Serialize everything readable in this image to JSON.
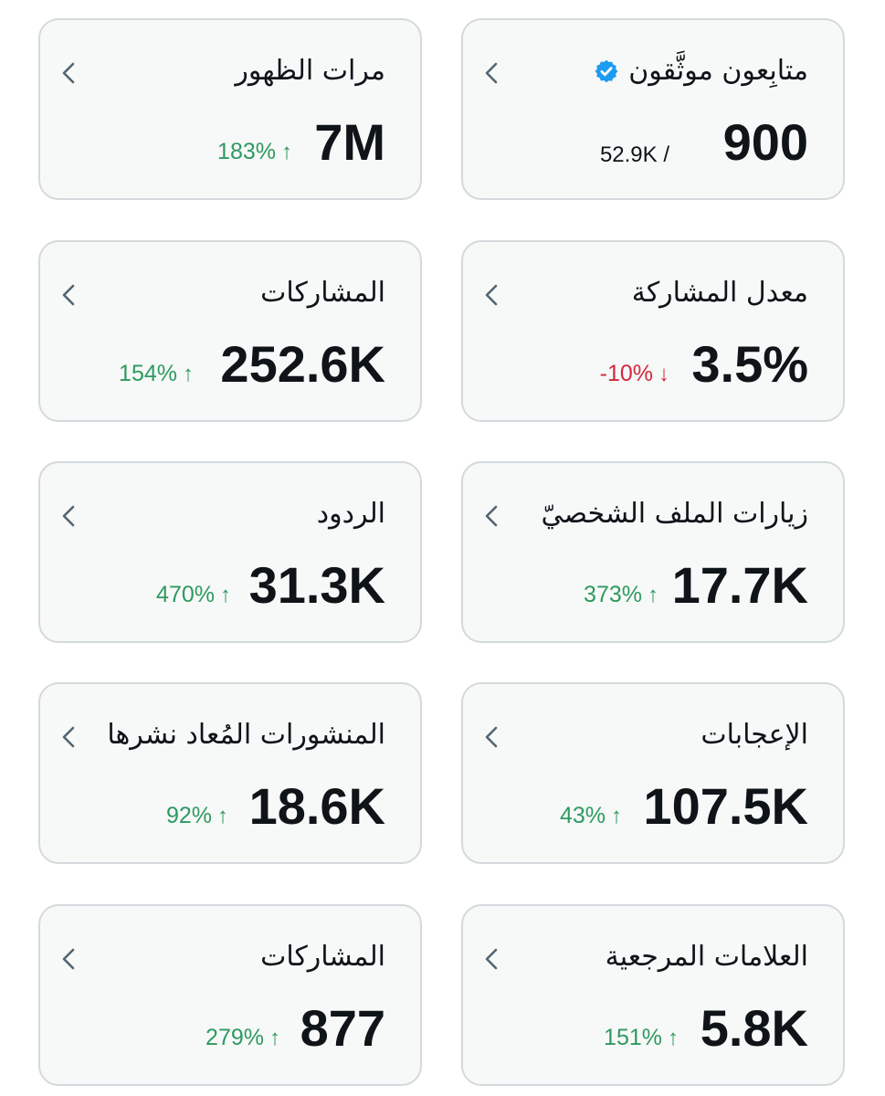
{
  "colors": {
    "card_bg": "#f7f8f8",
    "card_border": "#d4d9dd",
    "text_primary": "#0f1419",
    "positive": "#2e9a5f",
    "negative": "#d2293b",
    "verified_badge": "#1d9bf0",
    "chevron": "#536471"
  },
  "cards": [
    {
      "title": "متابِعون موثَّقون",
      "icon": "verified-badge-icon",
      "value": "900",
      "total": "52.9K /"
    },
    {
      "title": "مرات الظهور",
      "value": "7M",
      "change": "183%",
      "direction": "up"
    },
    {
      "title": "معدل المشاركة",
      "value": "3.5%",
      "change": "-10%",
      "direction": "down"
    },
    {
      "title": "المشاركات",
      "value": "252.6K",
      "change": "154%",
      "direction": "up"
    },
    {
      "title": "زيارات الملف الشخصيّ",
      "value": "17.7K",
      "change": "373%",
      "direction": "up"
    },
    {
      "title": "الردود",
      "value": "31.3K",
      "change": "470%",
      "direction": "up"
    },
    {
      "title": "الإعجابات",
      "value": "107.5K",
      "change": "43%",
      "direction": "up"
    },
    {
      "title": "المنشورات المُعاد نشرها",
      "value": "18.6K",
      "change": "92%",
      "direction": "up"
    },
    {
      "title": "العلامات المرجعية",
      "value": "5.8K",
      "change": "151%",
      "direction": "up"
    },
    {
      "title": "المشاركات",
      "value": "877",
      "change": "279%",
      "direction": "up"
    }
  ]
}
